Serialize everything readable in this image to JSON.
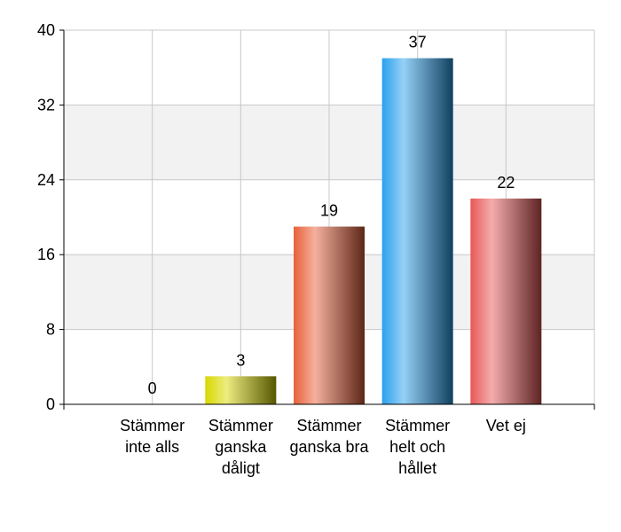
{
  "chart_data": {
    "type": "bar",
    "categories": [
      "Stämmer inte alls",
      "Stämmer ganska dåligt",
      "Stämmer ganska bra",
      "Stämmer helt och hållet",
      "Vet ej"
    ],
    "values": [
      0,
      3,
      19,
      37,
      22
    ],
    "colors": [
      null,
      "#d8d800",
      "#e8603a",
      "#2aa0ee",
      "#e85858"
    ],
    "ylim": [
      0,
      40
    ],
    "yticks": [
      0,
      8,
      16,
      24,
      32,
      40
    ],
    "grid": true
  }
}
